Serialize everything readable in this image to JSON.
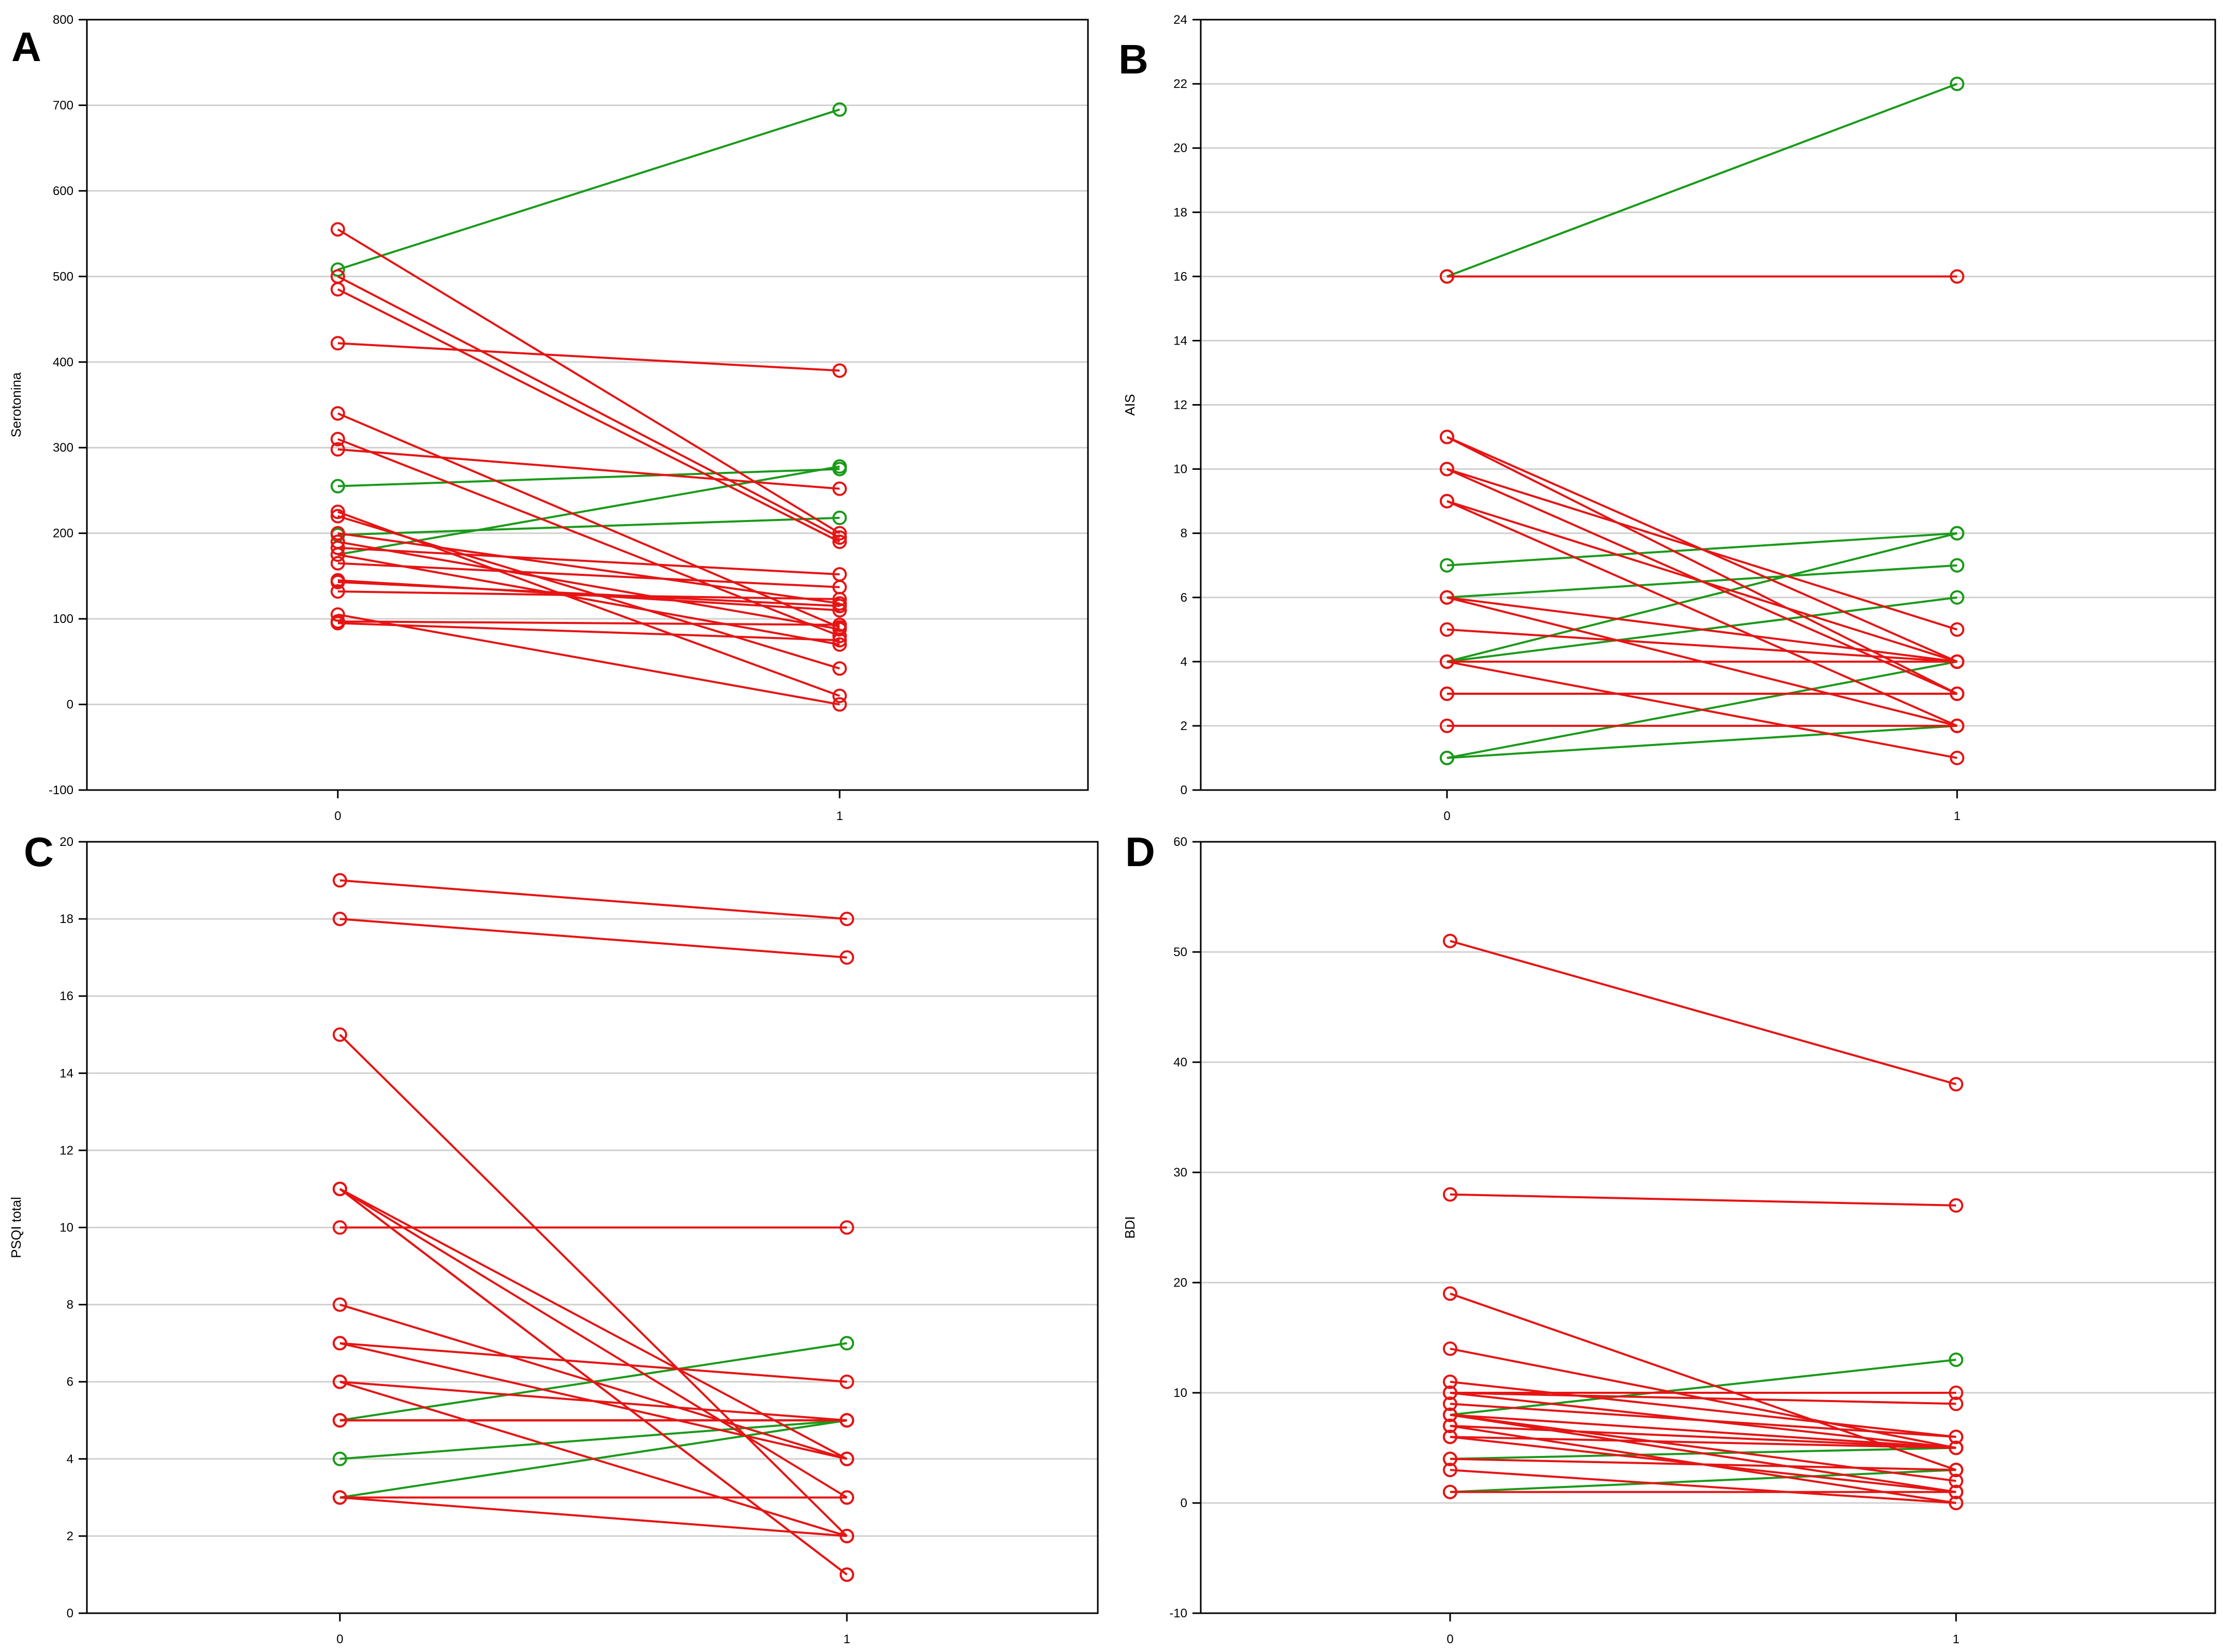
{
  "colors": {
    "increase": "#1a9a1a",
    "decrease": "#e61414",
    "grid": "#d0d0d0",
    "axis": "#000000"
  },
  "chart_data": [
    {
      "type": "line",
      "panel": "A",
      "ylabel": "Serotonina",
      "xlabel": "",
      "x_categories": [
        "0",
        "1"
      ],
      "ylim": [
        -100,
        800
      ],
      "yticks": [
        -100,
        0,
        100,
        200,
        300,
        400,
        500,
        600,
        700,
        800
      ],
      "yticklabels": [
        "-100",
        "0",
        "100",
        "200",
        "300",
        "400",
        "500",
        "600",
        "700",
        "800"
      ],
      "grid": true,
      "pairs": [
        [
          508,
          695
        ],
        [
          255,
          275
        ],
        [
          175,
          278
        ],
        [
          198,
          218
        ],
        [
          555,
          200
        ],
        [
          500,
          195
        ],
        [
          485,
          190
        ],
        [
          422,
          390
        ],
        [
          340,
          90
        ],
        [
          310,
          80
        ],
        [
          298,
          252
        ],
        [
          225,
          10
        ],
        [
          220,
          42
        ],
        [
          200,
          118
        ],
        [
          190,
          88
        ],
        [
          183,
          152
        ],
        [
          175,
          70
        ],
        [
          165,
          137
        ],
        [
          145,
          110
        ],
        [
          143,
          115
        ],
        [
          132,
          123
        ],
        [
          105,
          0
        ],
        [
          97,
          93
        ],
        [
          95,
          75
        ]
      ]
    },
    {
      "type": "line",
      "panel": "B",
      "ylabel": "AIS",
      "xlabel": "",
      "x_categories": [
        "0",
        "1"
      ],
      "ylim": [
        0,
        24
      ],
      "yticks": [
        0,
        2,
        4,
        6,
        8,
        10,
        12,
        14,
        16,
        18,
        20,
        22,
        24
      ],
      "yticklabels": [
        "0",
        "2",
        "4",
        "6",
        "8",
        "10",
        "12",
        "14",
        "16",
        "18",
        "20",
        "22",
        "24"
      ],
      "grid": true,
      "pairs": [
        [
          16,
          22
        ],
        [
          7,
          8
        ],
        [
          6,
          7
        ],
        [
          4,
          8
        ],
        [
          4,
          6
        ],
        [
          1,
          4
        ],
        [
          1,
          2
        ],
        [
          16,
          16
        ],
        [
          11,
          4
        ],
        [
          11,
          3
        ],
        [
          10,
          5
        ],
        [
          10,
          3
        ],
        [
          9,
          4
        ],
        [
          9,
          2
        ],
        [
          6,
          4
        ],
        [
          6,
          2
        ],
        [
          5,
          4
        ],
        [
          4,
          4
        ],
        [
          4,
          1
        ],
        [
          3,
          3
        ],
        [
          3,
          3
        ],
        [
          2,
          2
        ]
      ]
    },
    {
      "type": "line",
      "panel": "C",
      "ylabel": "PSQI total",
      "xlabel": "",
      "x_categories": [
        "0",
        "1"
      ],
      "ylim": [
        0,
        20
      ],
      "yticks": [
        0,
        2,
        4,
        6,
        8,
        10,
        12,
        14,
        16,
        18,
        20
      ],
      "yticklabels": [
        "0",
        "2",
        "4",
        "6",
        "8",
        "10",
        "12",
        "14",
        "16",
        "18",
        "20"
      ],
      "grid": true,
      "pairs": [
        [
          5,
          7
        ],
        [
          4,
          5
        ],
        [
          3,
          5
        ],
        [
          19,
          18
        ],
        [
          18,
          17
        ],
        [
          15,
          2
        ],
        [
          11,
          4
        ],
        [
          11,
          3
        ],
        [
          11,
          1
        ],
        [
          11,
          1
        ],
        [
          10,
          10
        ],
        [
          8,
          4
        ],
        [
          7,
          6
        ],
        [
          7,
          4
        ],
        [
          6,
          5
        ],
        [
          6,
          2
        ],
        [
          5,
          5
        ],
        [
          5,
          5
        ],
        [
          5,
          5
        ],
        [
          3,
          3
        ],
        [
          3,
          2
        ]
      ]
    },
    {
      "type": "line",
      "panel": "D",
      "ylabel": "BDI",
      "xlabel": "",
      "x_categories": [
        "0",
        "1"
      ],
      "ylim": [
        -10,
        60
      ],
      "yticks": [
        -10,
        0,
        10,
        20,
        30,
        40,
        50,
        60
      ],
      "yticklabels": [
        "-10",
        "0",
        "10",
        "20",
        "30",
        "40",
        "50",
        "60"
      ],
      "grid": true,
      "pairs": [
        [
          8,
          13
        ],
        [
          4,
          5
        ],
        [
          1,
          3
        ],
        [
          1,
          1
        ],
        [
          51,
          38
        ],
        [
          28,
          27
        ],
        [
          19,
          3
        ],
        [
          14,
          5
        ],
        [
          11,
          6
        ],
        [
          10,
          10
        ],
        [
          10,
          9
        ],
        [
          10,
          5
        ],
        [
          9,
          6
        ],
        [
          8,
          5
        ],
        [
          8,
          2
        ],
        [
          8,
          1
        ],
        [
          7,
          5
        ],
        [
          7,
          0
        ],
        [
          6,
          5
        ],
        [
          6,
          1
        ],
        [
          4,
          3
        ],
        [
          3,
          0
        ]
      ]
    }
  ]
}
